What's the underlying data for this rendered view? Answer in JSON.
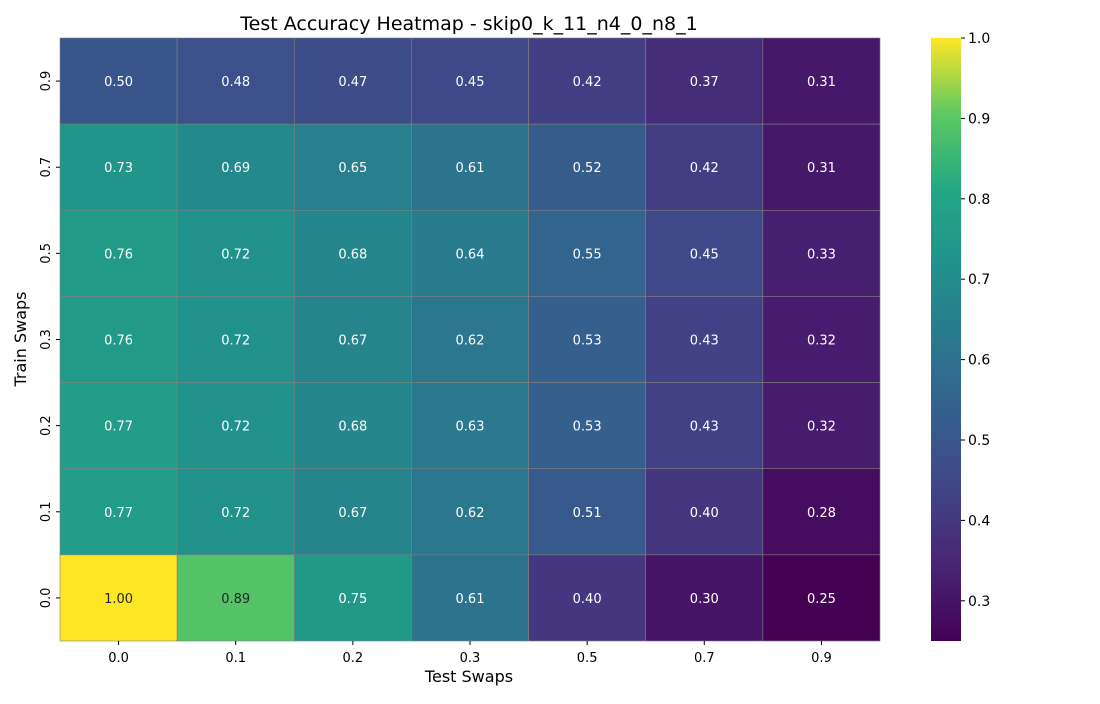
{
  "chart_data": {
    "type": "heatmap",
    "title": "Test Accuracy Heatmap - skip0_k_11_n4_0_n8_1",
    "xlabel": "Test Swaps",
    "ylabel": "Train Swaps",
    "x_categories": [
      "0.0",
      "0.1",
      "0.2",
      "0.3",
      "0.5",
      "0.7",
      "0.9"
    ],
    "y_categories": [
      "0.9",
      "0.7",
      "0.5",
      "0.3",
      "0.2",
      "0.1",
      "0.0"
    ],
    "values": [
      [
        0.5,
        0.48,
        0.47,
        0.45,
        0.42,
        0.37,
        0.31
      ],
      [
        0.73,
        0.69,
        0.65,
        0.61,
        0.52,
        0.42,
        0.31
      ],
      [
        0.76,
        0.72,
        0.68,
        0.64,
        0.55,
        0.45,
        0.33
      ],
      [
        0.76,
        0.72,
        0.67,
        0.62,
        0.53,
        0.43,
        0.32
      ],
      [
        0.77,
        0.72,
        0.68,
        0.63,
        0.53,
        0.43,
        0.32
      ],
      [
        0.77,
        0.72,
        0.67,
        0.62,
        0.51,
        0.4,
        0.28
      ],
      [
        1.0,
        0.89,
        0.75,
        0.61,
        0.4,
        0.3,
        0.25
      ]
    ],
    "value_format": "0.00",
    "colormap": "viridis",
    "color_range": [
      0.25,
      1.0
    ],
    "colorbar_ticks": [
      "0.3",
      "0.4",
      "0.5",
      "0.6",
      "0.7",
      "0.8",
      "0.9",
      "1.0"
    ],
    "colorbar_position": "right",
    "grid_line_color": "#808080"
  }
}
